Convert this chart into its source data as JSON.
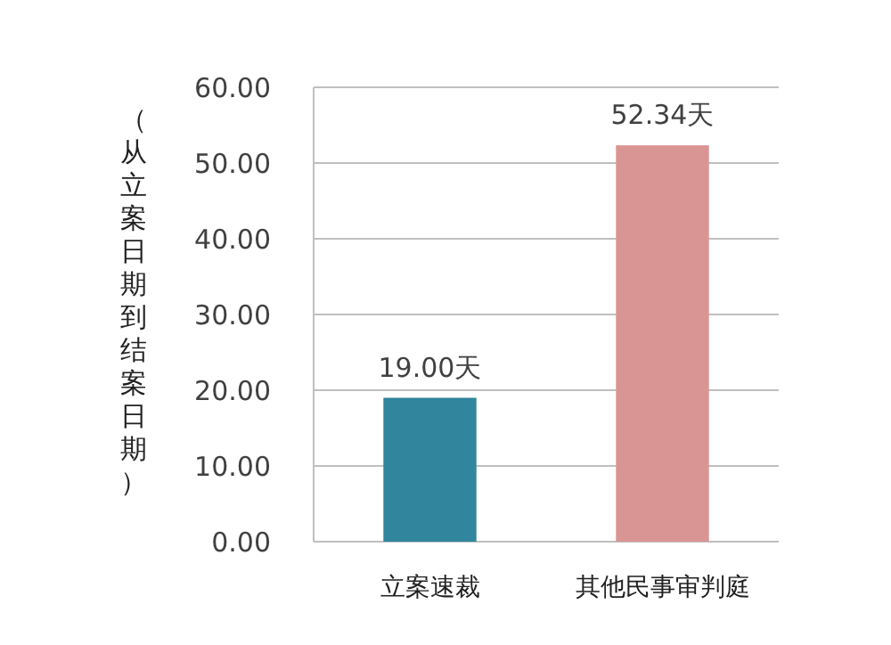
{
  "chart_data": {
    "type": "bar",
    "ylabel": "（从立案日期到结案日期）",
    "categories": [
      "立案速裁",
      "其他民事审判庭"
    ],
    "values": [
      19.0,
      52.34
    ],
    "colors": [
      "#31859c",
      "#d99594"
    ],
    "value_labels": [
      "19.00天",
      "52.34天"
    ],
    "ylim": [
      0,
      60
    ],
    "yticks": [
      {
        "value": 0,
        "label": "0.00"
      },
      {
        "value": 10,
        "label": "10.00"
      },
      {
        "value": 20,
        "label": "20.00"
      },
      {
        "value": 30,
        "label": "30.00"
      },
      {
        "value": 40,
        "label": "40.00"
      },
      {
        "value": 50,
        "label": "50.00"
      },
      {
        "value": 60,
        "label": "60.00"
      }
    ],
    "grid": "y"
  }
}
